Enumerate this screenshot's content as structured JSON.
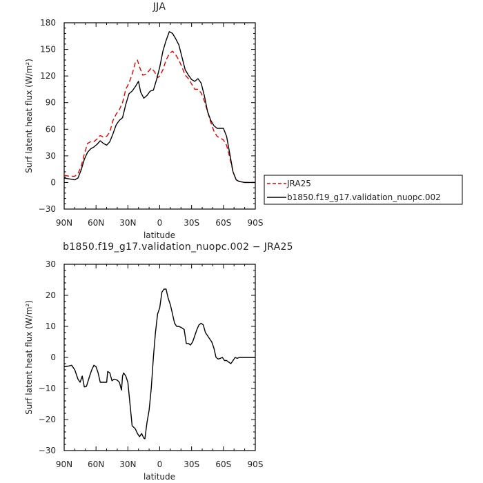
{
  "chart_data": [
    {
      "type": "line",
      "title": "JJA",
      "xlabel": "latitude",
      "ylabel": "Surf latent heat flux (W/m²)",
      "xlim": [
        90,
        -90
      ],
      "ylim": [
        -30,
        180
      ],
      "yticks": [
        -30,
        0,
        30,
        60,
        90,
        120,
        150,
        180
      ],
      "xticks": [
        90,
        60,
        30,
        0,
        -30,
        -60,
        -90
      ],
      "xticklabels": [
        "90N",
        "60N",
        "30N",
        "0",
        "30S",
        "60S",
        "90S"
      ],
      "legend": "right",
      "series": [
        {
          "name": "JRA25",
          "color": "#e00000",
          "dash": "dashed",
          "points": [
            [
              90,
              8
            ],
            [
              85,
              7
            ],
            [
              80,
              7
            ],
            [
              77,
              10
            ],
            [
              74,
              18
            ],
            [
              71,
              32
            ],
            [
              68,
              44
            ],
            [
              65,
              46
            ],
            [
              62,
              46
            ],
            [
              59,
              49
            ],
            [
              56,
              53
            ],
            [
              53,
              51
            ],
            [
              50,
              52
            ],
            [
              47,
              57
            ],
            [
              44,
              70
            ],
            [
              41,
              77
            ],
            [
              38,
              82
            ],
            [
              35,
              90
            ],
            [
              32,
              105
            ],
            [
              29,
              112
            ],
            [
              26,
              122
            ],
            [
              23,
              135
            ],
            [
              21,
              138
            ],
            [
              19,
              130
            ],
            [
              16,
              121
            ],
            [
              13,
              122
            ],
            [
              10,
              126
            ],
            [
              8,
              129
            ],
            [
              5,
              125
            ],
            [
              2,
              118
            ],
            [
              0,
              120
            ],
            [
              -3,
              127
            ],
            [
              -6,
              138
            ],
            [
              -9,
              145
            ],
            [
              -12,
              148
            ],
            [
              -15,
              144
            ],
            [
              -18,
              138
            ],
            [
              -21,
              130
            ],
            [
              -24,
              121
            ],
            [
              -27,
              117
            ],
            [
              -30,
              111
            ],
            [
              -33,
              105
            ],
            [
              -36,
              105
            ],
            [
              -39,
              101
            ],
            [
              -42,
              92
            ],
            [
              -45,
              80
            ],
            [
              -48,
              68
            ],
            [
              -51,
              58
            ],
            [
              -54,
              52
            ],
            [
              -57,
              50
            ],
            [
              -60,
              48
            ],
            [
              -63,
              42
            ],
            [
              -66,
              28
            ],
            [
              -69,
              12
            ],
            [
              -72,
              3
            ],
            [
              -75,
              1
            ],
            [
              -80,
              0
            ],
            [
              -85,
              0
            ],
            [
              -90,
              0
            ]
          ]
        },
        {
          "name": "b1850.f19_g17.validation_nuopc.002",
          "color": "#000000",
          "dash": "solid",
          "points": [
            [
              90,
              5
            ],
            [
              85,
              4
            ],
            [
              80,
              3
            ],
            [
              77,
              5
            ],
            [
              74,
              14
            ],
            [
              71,
              26
            ],
            [
              68,
              34
            ],
            [
              65,
              38
            ],
            [
              62,
              40
            ],
            [
              59,
              43
            ],
            [
              56,
              47
            ],
            [
              53,
              44
            ],
            [
              50,
              42
            ],
            [
              47,
              46
            ],
            [
              44,
              55
            ],
            [
              41,
              65
            ],
            [
              38,
              70
            ],
            [
              35,
              73
            ],
            [
              32,
              88
            ],
            [
              29,
              100
            ],
            [
              26,
              103
            ],
            [
              23,
              108
            ],
            [
              20,
              114
            ],
            [
              18,
              102
            ],
            [
              15,
              95
            ],
            [
              12,
              98
            ],
            [
              9,
              103
            ],
            [
              6,
              104
            ],
            [
              3,
              116
            ],
            [
              0,
              130
            ],
            [
              -3,
              148
            ],
            [
              -6,
              160
            ],
            [
              -9,
              170
            ],
            [
              -12,
              168
            ],
            [
              -15,
              162
            ],
            [
              -18,
              155
            ],
            [
              -21,
              141
            ],
            [
              -24,
              127
            ],
            [
              -27,
              121
            ],
            [
              -30,
              116
            ],
            [
              -33,
              114
            ],
            [
              -36,
              117
            ],
            [
              -39,
              112
            ],
            [
              -42,
              98
            ],
            [
              -45,
              80
            ],
            [
              -48,
              70
            ],
            [
              -51,
              64
            ],
            [
              -54,
              61
            ],
            [
              -57,
              61
            ],
            [
              -60,
              61
            ],
            [
              -63,
              52
            ],
            [
              -66,
              32
            ],
            [
              -69,
              12
            ],
            [
              -72,
              3
            ],
            [
              -75,
              1
            ],
            [
              -80,
              0
            ],
            [
              -85,
              0
            ],
            [
              -90,
              0
            ]
          ]
        }
      ]
    },
    {
      "type": "line",
      "title": "b1850.f19_g17.validation_nuopc.002 − JRA25",
      "xlabel": "latitude",
      "ylabel": "Surf latent heat flux (W/m²)",
      "xlim": [
        90,
        -90
      ],
      "ylim": [
        -30,
        30
      ],
      "yticks": [
        -30,
        -20,
        -10,
        0,
        10,
        20,
        30
      ],
      "xticks": [
        90,
        60,
        30,
        0,
        -30,
        -60,
        -90
      ],
      "xticklabels": [
        "90N",
        "60N",
        "30N",
        "0",
        "30S",
        "60S",
        "90S"
      ],
      "series": [
        {
          "color": "#000000",
          "dash": "solid",
          "points": [
            [
              90,
              -3
            ],
            [
              86,
              -2.8
            ],
            [
              83,
              -2.5
            ],
            [
              80,
              -4
            ],
            [
              77,
              -7
            ],
            [
              75,
              -8
            ],
            [
              73,
              -6
            ],
            [
              71,
              -9.5
            ],
            [
              69,
              -9.3
            ],
            [
              66,
              -6
            ],
            [
              64,
              -4
            ],
            [
              62,
              -2.5
            ],
            [
              60,
              -3
            ],
            [
              58,
              -5
            ],
            [
              56,
              -8
            ],
            [
              53,
              -8
            ],
            [
              50,
              -8
            ],
            [
              49,
              -4.5
            ],
            [
              47,
              -5
            ],
            [
              45,
              -7.5
            ],
            [
              43,
              -7
            ],
            [
              40,
              -7.3
            ],
            [
              38,
              -8
            ],
            [
              36,
              -10.5
            ],
            [
              35,
              -6
            ],
            [
              34,
              -5
            ],
            [
              32,
              -6
            ],
            [
              30,
              -8
            ],
            [
              28,
              -15
            ],
            [
              26,
              -22
            ],
            [
              23,
              -23
            ],
            [
              21,
              -24.5
            ],
            [
              19,
              -25.5
            ],
            [
              17,
              -24.5
            ],
            [
              15,
              -26
            ],
            [
              14,
              -26.2
            ],
            [
              12,
              -21
            ],
            [
              10,
              -17
            ],
            [
              8,
              -10
            ],
            [
              6,
              0
            ],
            [
              4,
              8
            ],
            [
              2,
              14
            ],
            [
              0,
              16
            ],
            [
              -2,
              21
            ],
            [
              -4,
              22
            ],
            [
              -6,
              22
            ],
            [
              -8,
              19
            ],
            [
              -10,
              17
            ],
            [
              -12,
              14
            ],
            [
              -14,
              11
            ],
            [
              -16,
              10
            ],
            [
              -18,
              10
            ],
            [
              -21,
              9.5
            ],
            [
              -23,
              9
            ],
            [
              -25,
              4.5
            ],
            [
              -27,
              4.5
            ],
            [
              -29,
              4
            ],
            [
              -31,
              5
            ],
            [
              -33,
              7
            ],
            [
              -35,
              9
            ],
            [
              -37,
              10.5
            ],
            [
              -39,
              11
            ],
            [
              -41,
              10.5
            ],
            [
              -43,
              8
            ],
            [
              -45,
              7
            ],
            [
              -47,
              6
            ],
            [
              -49,
              5
            ],
            [
              -51,
              3
            ],
            [
              -53,
              0
            ],
            [
              -55,
              -0.5
            ],
            [
              -57,
              -0.3
            ],
            [
              -59,
              0
            ],
            [
              -61,
              -1
            ],
            [
              -63,
              -1
            ],
            [
              -65,
              -1.5
            ],
            [
              -67,
              -2
            ],
            [
              -69,
              -1
            ],
            [
              -71,
              0
            ],
            [
              -73,
              -0.3
            ],
            [
              -75,
              0
            ],
            [
              -80,
              0
            ],
            [
              -85,
              0
            ],
            [
              -90,
              0
            ]
          ]
        }
      ]
    }
  ]
}
